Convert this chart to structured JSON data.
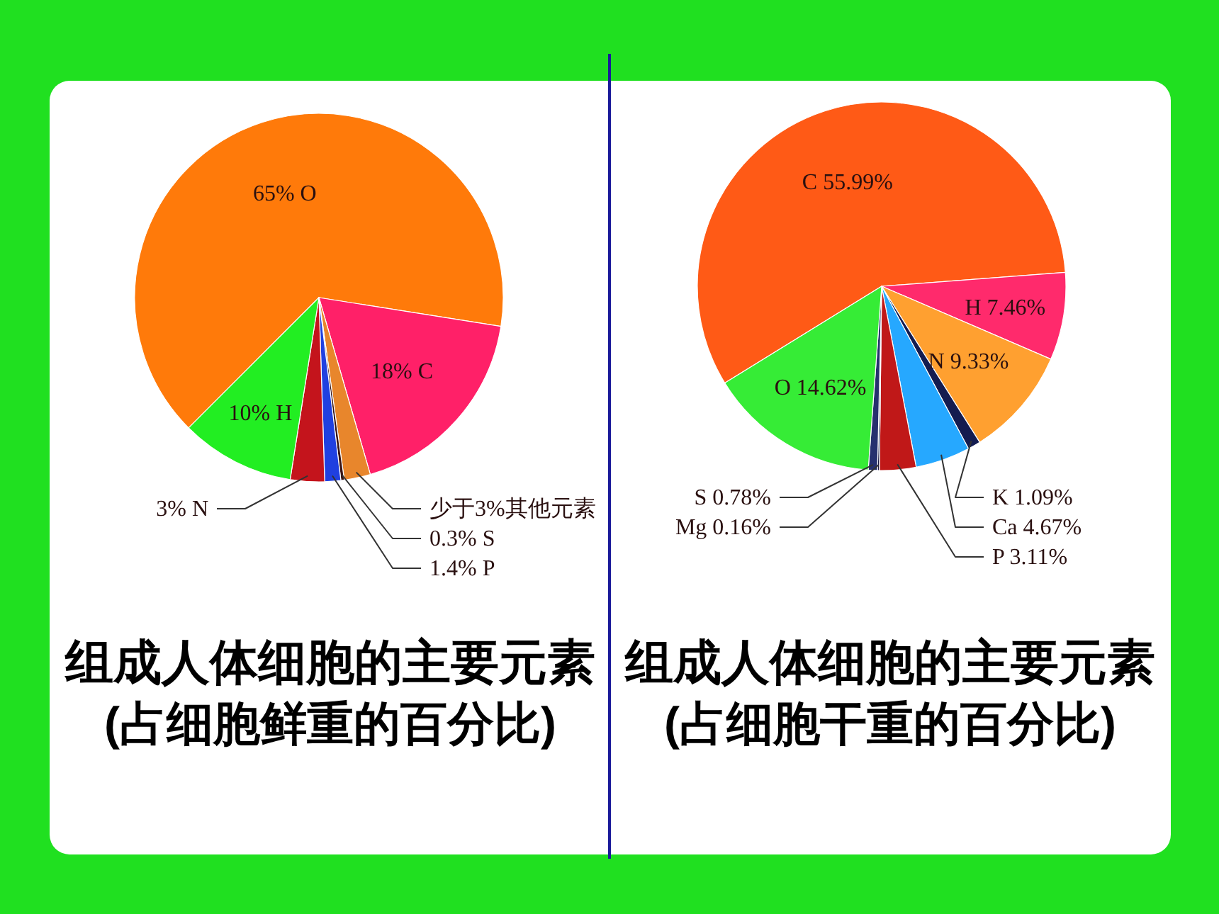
{
  "chart_data": [
    {
      "type": "pie",
      "title": "组成人体细胞的主要元素",
      "subtitle": "(占细胞鲜重的百分比)",
      "categories": [
        "65% O",
        "18% C",
        "少于3%其他元素",
        "0.3% S",
        "1.4% P",
        "3% N",
        "10% H"
      ],
      "values": [
        65,
        18,
        2.3,
        0.3,
        1.4,
        3,
        10
      ],
      "colors": [
        "#ff7a0a",
        "#ff2068",
        "#e8862c",
        "#3a1414",
        "#2040e0",
        "#c4141c",
        "#22ee22"
      ]
    },
    {
      "type": "pie",
      "title": "组成人体细胞的主要元素",
      "subtitle": "(占细胞干重的百分比)",
      "categories": [
        "C 55.99%",
        "H 7.46%",
        "N 9.33%",
        "K 1.09%",
        "Ca 4.67%",
        "P 3.11%",
        "Mg 0.16%",
        "S 0.78%",
        "O 14.62%"
      ],
      "values": [
        55.99,
        7.46,
        9.33,
        1.09,
        4.67,
        3.11,
        0.16,
        0.78,
        14.62
      ],
      "colors": [
        "#ff5a16",
        "#ff2a6c",
        "#ffa030",
        "#141c50",
        "#26a8ff",
        "#c01818",
        "#1a1a40",
        "#26306e",
        "#36ec36"
      ]
    }
  ]
}
